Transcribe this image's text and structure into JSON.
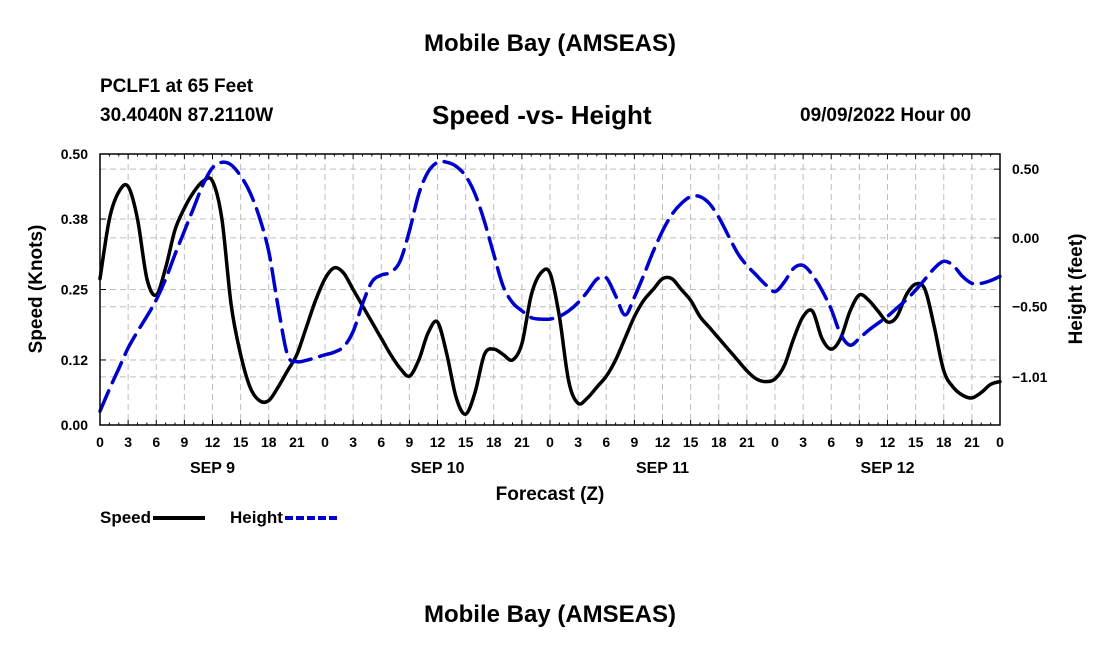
{
  "header": {
    "main_title": "Mobile Bay (AMSEAS)",
    "station": "PCLF1 at 65 Feet",
    "coords": "30.4040N  87.2110W",
    "date": "09/09/2022 Hour 00"
  },
  "footer": {
    "title": "Mobile Bay (AMSEAS)"
  },
  "colors": {
    "speed": "#000000",
    "height": "#0000cc",
    "grid": "#bdbdbd"
  },
  "chart_data": {
    "type": "line",
    "title": "Speed -vs- Height",
    "xlabel": "Forecast (Z)",
    "ylabel_left": "Speed (Knots)",
    "ylabel_right": "Height (feet)",
    "xlim_hours": [
      0,
      96
    ],
    "x_tick_labels": [
      "0",
      "3",
      "6",
      "9",
      "12",
      "15",
      "18",
      "21",
      "0",
      "3",
      "6",
      "9",
      "12",
      "15",
      "18",
      "21",
      "0",
      "3",
      "6",
      "9",
      "12",
      "15",
      "18",
      "21",
      "0",
      "3",
      "6",
      "9",
      "12",
      "15",
      "18",
      "21",
      "0"
    ],
    "date_labels": [
      {
        "label": "SEP 9",
        "hour": 12
      },
      {
        "label": "SEP 10",
        "hour": 36
      },
      {
        "label": "SEP 11",
        "hour": 60
      },
      {
        "label": "SEP 12",
        "hour": 84
      }
    ],
    "y_left": {
      "ylim": [
        0,
        0.5
      ],
      "ticks": [
        0.0,
        0.12,
        0.25,
        0.38,
        0.5
      ],
      "tick_labels": [
        "0.00",
        "0.12",
        "0.25",
        "0.38",
        "0.50"
      ]
    },
    "y_right": {
      "ylim": [
        -1.36,
        0.61
      ],
      "ticks": [
        0.5,
        0.0,
        -0.5,
        -1.01
      ],
      "tick_labels": [
        "0.50",
        "0.00",
        "−0.50",
        "−1.01"
      ]
    },
    "series": [
      {
        "name": "Speed",
        "axis": "left",
        "x": [
          0,
          1,
          2,
          3,
          4,
          5,
          6,
          7,
          8,
          9,
          10,
          11,
          12,
          13,
          14,
          15,
          16,
          17,
          18,
          19,
          20,
          21,
          22,
          23,
          24,
          25,
          26,
          27,
          28,
          29,
          30,
          31,
          32,
          33,
          34,
          35,
          36,
          37,
          38,
          39,
          40,
          41,
          42,
          43,
          44,
          45,
          46,
          47,
          48,
          49,
          50,
          51,
          52,
          53,
          54,
          55,
          56,
          57,
          58,
          59,
          60,
          61,
          62,
          63,
          64,
          65,
          66,
          67,
          68,
          69,
          70,
          71,
          72,
          73,
          74,
          75,
          76,
          77,
          78,
          79,
          80,
          81,
          82,
          83,
          84,
          85,
          86,
          87,
          88,
          89,
          90,
          91,
          92,
          93,
          94,
          95,
          96
        ],
        "values": [
          0.27,
          0.38,
          0.43,
          0.44,
          0.38,
          0.27,
          0.24,
          0.29,
          0.36,
          0.4,
          0.43,
          0.45,
          0.45,
          0.38,
          0.22,
          0.13,
          0.07,
          0.045,
          0.045,
          0.07,
          0.1,
          0.13,
          0.18,
          0.23,
          0.27,
          0.29,
          0.28,
          0.25,
          0.22,
          0.19,
          0.16,
          0.13,
          0.105,
          0.09,
          0.12,
          0.17,
          0.19,
          0.13,
          0.05,
          0.02,
          0.06,
          0.13,
          0.14,
          0.13,
          0.12,
          0.15,
          0.24,
          0.28,
          0.28,
          0.2,
          0.08,
          0.04,
          0.05,
          0.07,
          0.09,
          0.12,
          0.16,
          0.2,
          0.23,
          0.25,
          0.27,
          0.27,
          0.25,
          0.23,
          0.2,
          0.18,
          0.16,
          0.14,
          0.12,
          0.1,
          0.085,
          0.08,
          0.085,
          0.11,
          0.16,
          0.2,
          0.21,
          0.16,
          0.14,
          0.16,
          0.21,
          0.24,
          0.23,
          0.21,
          0.19,
          0.2,
          0.24,
          0.26,
          0.25,
          0.18,
          0.1,
          0.07,
          0.055,
          0.05,
          0.06,
          0.075,
          0.08
        ]
      },
      {
        "name": "Height",
        "axis": "right",
        "x": [
          0,
          1,
          2,
          3,
          4,
          5,
          6,
          7,
          8,
          9,
          10,
          11,
          12,
          13,
          14,
          15,
          16,
          17,
          18,
          19,
          20,
          21,
          22,
          23,
          24,
          25,
          26,
          27,
          28,
          29,
          30,
          31,
          32,
          33,
          34,
          35,
          36,
          37,
          38,
          39,
          40,
          41,
          42,
          43,
          44,
          45,
          46,
          47,
          48,
          49,
          50,
          51,
          52,
          53,
          54,
          55,
          56,
          57,
          58,
          59,
          60,
          61,
          62,
          63,
          64,
          65,
          66,
          67,
          68,
          69,
          70,
          71,
          72,
          73,
          74,
          75,
          76,
          77,
          78,
          79,
          80,
          81,
          82,
          83,
          84,
          85,
          86,
          87,
          88,
          89,
          90,
          91,
          92,
          93,
          94,
          95,
          96
        ],
        "values": [
          -1.26,
          -1.1,
          -0.95,
          -0.8,
          -0.68,
          -0.57,
          -0.45,
          -0.3,
          -0.12,
          0.05,
          0.22,
          0.39,
          0.51,
          0.55,
          0.53,
          0.45,
          0.33,
          0.15,
          -0.1,
          -0.5,
          -0.85,
          -0.9,
          -0.89,
          -0.87,
          -0.85,
          -0.83,
          -0.79,
          -0.68,
          -0.48,
          -0.32,
          -0.27,
          -0.25,
          -0.17,
          0.05,
          0.32,
          0.48,
          0.55,
          0.55,
          0.52,
          0.45,
          0.32,
          0.12,
          -0.12,
          -0.35,
          -0.47,
          -0.53,
          -0.58,
          -0.59,
          -0.59,
          -0.57,
          -0.53,
          -0.47,
          -0.39,
          -0.3,
          -0.29,
          -0.42,
          -0.56,
          -0.43,
          -0.27,
          -0.1,
          0.05,
          0.17,
          0.25,
          0.3,
          0.3,
          0.25,
          0.15,
          0.02,
          -0.11,
          -0.2,
          -0.27,
          -0.34,
          -0.39,
          -0.32,
          -0.22,
          -0.2,
          -0.27,
          -0.38,
          -0.52,
          -0.7,
          -0.78,
          -0.73,
          -0.67,
          -0.62,
          -0.57,
          -0.51,
          -0.45,
          -0.38,
          -0.3,
          -0.22,
          -0.17,
          -0.2,
          -0.28,
          -0.33,
          -0.33,
          -0.31,
          -0.28
        ]
      }
    ],
    "grid": true,
    "legend_position": "bottom-left"
  }
}
